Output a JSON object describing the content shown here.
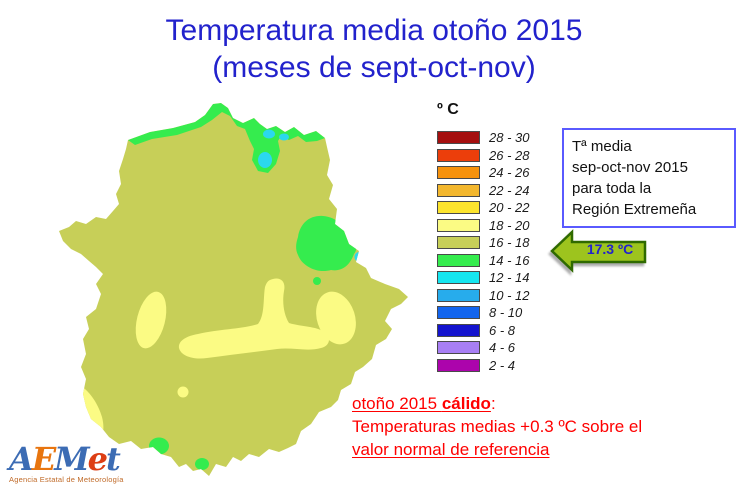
{
  "title": {
    "line1": "Temperatura media otoño 2015",
    "line2": "(meses de sept-oct-nov)"
  },
  "colors": {
    "title_blue": "#2222cc",
    "footnote_red": "#ff0000",
    "callout_text": "#2222cc",
    "infobox_border": "#5a5aff",
    "tagline_color": "#c06a28"
  },
  "legend": {
    "header": "º C",
    "items": [
      {
        "range": "28 - 30",
        "color": "#a50f0f"
      },
      {
        "range": "26 - 28",
        "color": "#ec3e0b"
      },
      {
        "range": "24 - 26",
        "color": "#f6920d"
      },
      {
        "range": "22 - 24",
        "color": "#f3b72e"
      },
      {
        "range": "20 - 22",
        "color": "#fce42e"
      },
      {
        "range": "18 - 20",
        "color": "#fbfb84"
      },
      {
        "range": "16 - 18",
        "color": "#c7cf58"
      },
      {
        "range": "14 - 16",
        "color": "#35ec4e"
      },
      {
        "range": "12 - 14",
        "color": "#16e6f0"
      },
      {
        "range": "10 - 12",
        "color": "#27acec"
      },
      {
        "range": "8 - 10",
        "color": "#1365ee"
      },
      {
        "range": "6 - 8",
        "color": "#1414ce"
      },
      {
        "range": "4 - 6",
        "color": "#a87ff4"
      },
      {
        "range": "2 - 4",
        "color": "#ac04ac"
      }
    ]
  },
  "infobox": {
    "lines": [
      "Tª media",
      "sep-oct-nov 2015",
      "para toda la",
      "Región Extremeña"
    ]
  },
  "callout": {
    "value": "17.3 ºC",
    "fill": "#9dc41e",
    "border": "#2f6a00"
  },
  "footnote": {
    "line1_underlined": "otoño 2015 ",
    "line1_bold": "cálido",
    "line1_suffix": ":",
    "line2": "Temperaturas medias +0.3 ºC sobre el",
    "line3": "valor normal de referencia"
  },
  "map": {
    "region": "Región Extremeña (Extremadura)",
    "dominant_range": "16 - 18",
    "colors": {
      "base": "#c7cf58",
      "warm_pockets": "#fbfb84",
      "cool_pockets": "#35ec4e",
      "cold_spots": "#2bd8ee"
    }
  },
  "logo": {
    "letters": [
      {
        "ch": "A",
        "color": "#3c6cb4"
      },
      {
        "ch": "E",
        "color": "#e8750f"
      },
      {
        "ch": "M",
        "color": "#3c6cb4"
      },
      {
        "ch": "e",
        "color": "#dd3e14"
      },
      {
        "ch": "t",
        "color": "#3c6cb4"
      }
    ],
    "tagline": "Agencia Estatal de Meteorología"
  }
}
